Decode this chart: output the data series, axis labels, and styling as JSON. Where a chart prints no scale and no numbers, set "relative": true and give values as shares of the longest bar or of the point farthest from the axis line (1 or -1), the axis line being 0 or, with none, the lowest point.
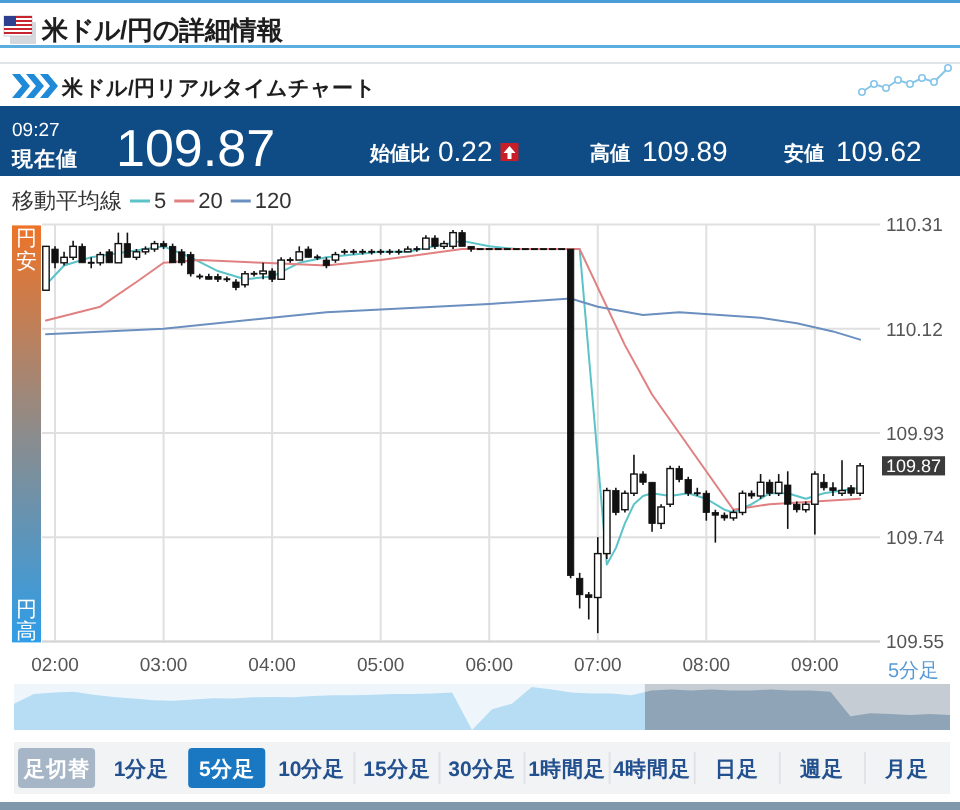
{
  "chart_data": [
    {
      "type": "other",
      "title": "米ドル/円の詳細情報",
      "subtitle": "米ドル/円リアルタイムチャート",
      "annotations": [
        "09:27",
        "現在値",
        "109.87",
        "始値比",
        "0.22",
        "高値",
        "109.89",
        "安値",
        "109.62"
      ]
    },
    {
      "type": "candlestick",
      "legend_title": "移動平均線",
      "legend": "top left",
      "x": [
        1.9167,
        2,
        2.0833,
        2.1667,
        2.25,
        2.3333,
        2.4167,
        2.5,
        2.5833,
        2.6667,
        2.75,
        2.8333,
        2.9167,
        3,
        3.0833,
        3.1667,
        3.25,
        3.3333,
        3.4167,
        3.5,
        3.5833,
        3.6667,
        3.75,
        3.8333,
        3.9167,
        4,
        4.0833,
        4.1667,
        4.25,
        4.3333,
        4.4167,
        4.5,
        4.5833,
        4.6667,
        4.75,
        4.8333,
        4.9167,
        5,
        5.0833,
        5.1667,
        5.25,
        5.3333,
        5.4167,
        5.5,
        5.5833,
        5.6667,
        5.75,
        5.8333,
        5.9167,
        6,
        6.0833,
        6.1667,
        6.25,
        6.3333,
        6.4167,
        6.5,
        6.5833,
        6.6667,
        6.75,
        6.8333,
        6.9167,
        7,
        7.0833,
        7.1667,
        7.25,
        7.3333,
        7.4167,
        7.5,
        7.5833,
        7.6667,
        7.75,
        7.8333,
        7.9167,
        8,
        8.0833,
        8.1667,
        8.25,
        8.3333,
        8.4167,
        8.5,
        8.5833,
        8.6667,
        8.75,
        8.8333,
        8.9167,
        9,
        9.0833,
        9.1667,
        9.25,
        9.3333,
        9.4167
      ],
      "ohlc": [
        [
          110.19,
          110.27,
          110.19,
          110.27
        ],
        [
          110.265,
          110.27,
          110.23,
          110.24
        ],
        [
          110.24,
          110.26,
          110.235,
          110.25
        ],
        [
          110.25,
          110.28,
          110.245,
          110.27
        ],
        [
          110.27,
          110.275,
          110.24,
          110.24
        ],
        [
          110.24,
          110.25,
          110.23,
          110.24
        ],
        [
          110.24,
          110.26,
          110.235,
          110.255
        ],
        [
          110.26,
          110.265,
          110.24,
          110.24
        ],
        [
          110.24,
          110.295,
          110.24,
          110.275
        ],
        [
          110.275,
          110.295,
          110.25,
          110.25
        ],
        [
          110.25,
          110.265,
          110.245,
          110.26
        ],
        [
          110.26,
          110.27,
          110.255,
          110.265
        ],
        [
          110.265,
          110.28,
          110.26,
          110.275
        ],
        [
          110.275,
          110.28,
          110.265,
          110.27
        ],
        [
          110.27,
          110.275,
          110.24,
          110.24
        ],
        [
          110.26,
          110.265,
          110.235,
          110.24
        ],
        [
          110.255,
          110.26,
          110.215,
          110.22
        ],
        [
          110.215,
          110.22,
          110.21,
          110.215
        ],
        [
          110.215,
          110.22,
          110.21,
          110.21
        ],
        [
          110.215,
          110.22,
          110.205,
          110.21
        ],
        [
          110.21,
          110.215,
          110.205,
          110.21
        ],
        [
          110.205,
          110.21,
          110.19,
          110.195
        ],
        [
          110.2,
          110.225,
          110.195,
          110.22
        ],
        [
          110.22,
          110.225,
          110.215,
          110.22
        ],
        [
          110.22,
          110.24,
          110.21,
          110.225
        ],
        [
          110.225,
          110.23,
          110.205,
          110.21
        ],
        [
          110.21,
          110.25,
          110.21,
          110.245
        ],
        [
          110.245,
          110.25,
          110.24,
          110.245
        ],
        [
          110.245,
          110.27,
          110.245,
          110.26
        ],
        [
          110.265,
          110.27,
          110.25,
          110.25
        ],
        [
          110.25,
          110.255,
          110.245,
          110.25
        ],
        [
          110.245,
          110.25,
          110.23,
          110.235
        ],
        [
          110.245,
          110.26,
          110.24,
          110.255
        ],
        [
          110.26,
          110.265,
          110.255,
          110.26
        ],
        [
          110.26,
          110.265,
          110.255,
          110.26
        ],
        [
          110.26,
          110.265,
          110.255,
          110.26
        ],
        [
          110.26,
          110.265,
          110.255,
          110.26
        ],
        [
          110.26,
          110.265,
          110.255,
          110.26
        ],
        [
          110.26,
          110.265,
          110.255,
          110.26
        ],
        [
          110.26,
          110.265,
          110.255,
          110.26
        ],
        [
          110.26,
          110.27,
          110.26,
          110.265
        ],
        [
          110.265,
          110.27,
          110.26,
          110.265
        ],
        [
          110.265,
          110.29,
          110.265,
          110.285
        ],
        [
          110.285,
          110.29,
          110.265,
          110.27
        ],
        [
          110.27,
          110.28,
          110.265,
          110.275
        ],
        [
          110.27,
          110.3,
          110.265,
          110.295
        ],
        [
          110.295,
          110.3,
          110.27,
          110.27
        ],
        [
          110.27,
          110.27,
          110.26,
          110.265
        ],
        [
          110.265,
          110.265,
          110.265,
          110.265
        ],
        [
          110.265,
          110.265,
          110.265,
          110.265
        ],
        [
          110.265,
          110.265,
          110.265,
          110.265
        ],
        [
          110.265,
          110.265,
          110.265,
          110.265
        ],
        [
          110.265,
          110.265,
          110.265,
          110.265
        ],
        [
          110.265,
          110.265,
          110.265,
          110.265
        ],
        [
          110.265,
          110.265,
          110.265,
          110.265
        ],
        [
          110.265,
          110.265,
          110.265,
          110.265
        ],
        [
          110.265,
          110.265,
          110.265,
          110.265
        ],
        [
          110.265,
          110.265,
          110.265,
          110.265
        ],
        [
          110.265,
          110.265,
          109.665,
          109.67
        ],
        [
          109.665,
          109.675,
          109.61,
          109.635
        ],
        [
          109.635,
          109.64,
          109.59,
          109.63
        ],
        [
          109.63,
          109.74,
          109.565,
          109.71
        ],
        [
          109.71,
          109.83,
          109.7,
          109.825
        ],
        [
          109.825,
          109.83,
          109.78,
          109.785
        ],
        [
          109.79,
          109.825,
          109.785,
          109.82
        ],
        [
          109.82,
          109.89,
          109.815,
          109.855
        ],
        [
          109.855,
          109.86,
          109.835,
          109.84
        ],
        [
          109.84,
          109.84,
          109.75,
          109.765
        ],
        [
          109.765,
          109.8,
          109.755,
          109.795
        ],
        [
          109.8,
          109.87,
          109.795,
          109.865
        ],
        [
          109.865,
          109.87,
          109.84,
          109.845
        ],
        [
          109.845,
          109.85,
          109.815,
          109.82
        ],
        [
          109.82,
          109.83,
          109.815,
          109.82
        ],
        [
          109.82,
          109.825,
          109.77,
          109.785
        ],
        [
          109.785,
          109.79,
          109.73,
          109.78
        ],
        [
          109.78,
          109.785,
          109.77,
          109.775
        ],
        [
          109.775,
          109.79,
          109.77,
          109.785
        ],
        [
          109.785,
          109.825,
          109.78,
          109.82
        ],
        [
          109.82,
          109.825,
          109.81,
          109.815
        ],
        [
          109.815,
          109.855,
          109.81,
          109.84
        ],
        [
          109.84,
          109.845,
          109.815,
          109.82
        ],
        [
          109.82,
          109.855,
          109.815,
          109.84
        ],
        [
          109.835,
          109.86,
          109.755,
          109.8
        ],
        [
          109.8,
          109.805,
          109.785,
          109.79
        ],
        [
          109.79,
          109.805,
          109.785,
          109.8
        ],
        [
          109.8,
          109.86,
          109.745,
          109.855
        ],
        [
          109.84,
          109.855,
          109.825,
          109.83
        ],
        [
          109.83,
          109.84,
          109.815,
          109.825
        ],
        [
          109.82,
          109.88,
          109.815,
          109.825
        ],
        [
          109.83,
          109.835,
          109.815,
          109.82
        ],
        [
          109.82,
          109.875,
          109.815,
          109.87
        ]
      ],
      "series": [
        {
          "name": "5",
          "type": "line",
          "color": "#5cc3c8",
          "x": [
            1.9167,
            2.0833,
            2.3333,
            2.6667,
            3,
            3.25,
            3.5,
            3.75,
            4,
            4.25,
            4.5,
            4.75,
            5,
            5.25,
            5.5,
            5.75,
            6,
            6.25,
            6.8333,
            7.0833,
            7.1667,
            7.25,
            7.3333,
            7.4167,
            7.5,
            7.6667,
            7.8333,
            8,
            8.1667,
            8.25,
            8.4167,
            8.5833,
            8.75,
            8.9167,
            9.0833,
            9.25,
            9.4167
          ],
          "values": [
            110.2,
            110.235,
            110.25,
            110.26,
            110.27,
            110.25,
            110.225,
            110.21,
            110.215,
            110.24,
            110.25,
            110.255,
            110.26,
            110.26,
            110.27,
            110.28,
            110.27,
            110.265,
            110.265,
            109.69,
            109.72,
            109.765,
            109.8,
            109.815,
            109.82,
            109.815,
            109.82,
            109.81,
            109.79,
            109.785,
            109.8,
            109.82,
            109.82,
            109.81,
            109.82,
            109.825,
            109.83
          ]
        },
        {
          "name": "20",
          "type": "line",
          "color": "#e08080",
          "x": [
            1.9167,
            2.4167,
            2.75,
            3,
            3.3333,
            3.9167,
            4.5,
            5,
            5.75,
            6.8333,
            7.25,
            7.5,
            8.25,
            8.5833,
            9,
            9.4167
          ],
          "values": [
            110.135,
            110.16,
            110.205,
            110.24,
            110.245,
            110.24,
            110.235,
            110.245,
            110.265,
            110.265,
            110.09,
            110.0,
            109.79,
            109.8,
            109.805,
            109.81
          ]
        },
        {
          "name": "120",
          "type": "line",
          "color": "#6b8fbf",
          "x": [
            1.9167,
            3,
            4.5,
            6,
            6.75,
            7,
            7.4167,
            7.75,
            8.5,
            8.8333,
            9.1667,
            9.4167
          ],
          "values": [
            110.11,
            110.12,
            110.15,
            110.165,
            110.175,
            110.16,
            110.145,
            110.15,
            110.14,
            110.13,
            110.115,
            110.1
          ]
        }
      ],
      "xlim": [
        1.88,
        9.6
      ],
      "xticks": [
        {
          "value": 2,
          "label": "02:00"
        },
        {
          "value": 3,
          "label": "03:00"
        },
        {
          "value": 4,
          "label": "04:00"
        },
        {
          "value": 5,
          "label": "05:00"
        },
        {
          "value": 6,
          "label": "06:00"
        },
        {
          "value": 7,
          "label": "07:00"
        },
        {
          "value": 8,
          "label": "08:00"
        },
        {
          "value": 9,
          "label": "09:00"
        }
      ],
      "ylim": [
        109.55,
        110.31
      ],
      "yticks": [
        110.31,
        110.12,
        109.93,
        109.74,
        109.55
      ],
      "grid": true,
      "annotations": [
        "円安",
        "円高",
        {
          "text": "109.87",
          "y": 109.87
        },
        "5分足"
      ]
    },
    {
      "type": "area",
      "relative": true,
      "categories": [
        null,
        null,
        null,
        null,
        null,
        null,
        null,
        null,
        null,
        null,
        null,
        null,
        null,
        null,
        null,
        null,
        null,
        null,
        null,
        null,
        null,
        null,
        null,
        null,
        null,
        null,
        null,
        null,
        null,
        null,
        null,
        null,
        null,
        null,
        null,
        null,
        null,
        null,
        null,
        null,
        null,
        null,
        null,
        null,
        null,
        null,
        null,
        null
      ],
      "values": [
        0.61,
        0.84,
        0.87,
        0.89,
        0.82,
        0.77,
        0.73,
        0.69,
        0.68,
        0.71,
        0.74,
        0.73,
        0.76,
        0.77,
        0.76,
        0.79,
        0.81,
        0.81,
        0.82,
        0.84,
        0.84,
        0.85,
        0.87,
        0,
        0.48,
        0.61,
        1,
        0.94,
        0.87,
        0.85,
        0.85,
        0.81,
        0.92,
        0.94,
        0.92,
        0.94,
        0.92,
        0.92,
        0.94,
        0.92,
        0.92,
        0.89,
        0.32,
        0.39,
        0.37,
        0.35,
        0.37,
        0.35
      ],
      "color": "#b7ddf4"
    },
    {
      "type": "other",
      "categories": [
        "足切替",
        "1分足",
        "5分足",
        "10分足",
        "15分足",
        "30分足",
        "1時間足",
        "4時間足",
        "日足",
        "週足",
        "月足"
      ],
      "colors": [
        "#a7b6c6",
        "#f2f3f5",
        "#1a78c2",
        "#f2f3f5",
        "#f2f3f5",
        "#f2f3f5",
        "#f2f3f5",
        "#f2f3f5",
        "#f2f3f5",
        "#f2f3f5",
        "#f2f3f5"
      ]
    }
  ]
}
